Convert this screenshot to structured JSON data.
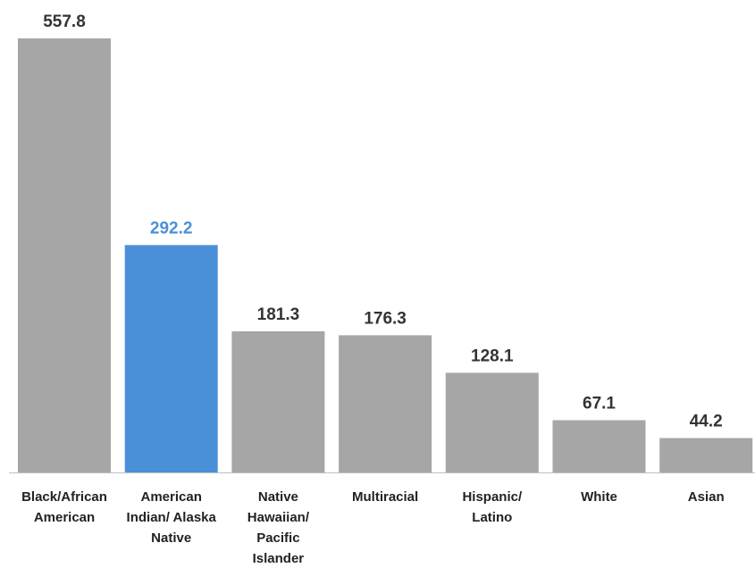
{
  "chart_data": {
    "type": "bar",
    "categories": [
      "Black/African American",
      "American Indian/ Alaska Native",
      "Native Hawaiian/ Pacific Islander",
      "Multiracial",
      "Hispanic/ Latino",
      "White",
      "Asian"
    ],
    "category_lines": [
      [
        "Black/African",
        "American"
      ],
      [
        "American",
        "Indian/ Alaska",
        "Native"
      ],
      [
        "Native",
        "Hawaiian/",
        "Pacific",
        "Islander"
      ],
      [
        "Multiracial"
      ],
      [
        "Hispanic/",
        "Latino"
      ],
      [
        "White"
      ],
      [
        "Asian"
      ]
    ],
    "values": [
      557.8,
      292.2,
      181.3,
      176.3,
      128.1,
      67.1,
      44.2
    ],
    "value_labels": [
      "557.8",
      "292.2",
      "181.3",
      "176.3",
      "128.1",
      "67.1",
      "44.2"
    ],
    "highlight_index": 1,
    "ylim": [
      0,
      557.8
    ],
    "grid": false,
    "colors": {
      "bar": "#a6a6a6",
      "highlight": "#4a90d9",
      "label": "#333333",
      "highlight_label": "#4a90d9",
      "axis": "#bfbfbf"
    }
  }
}
